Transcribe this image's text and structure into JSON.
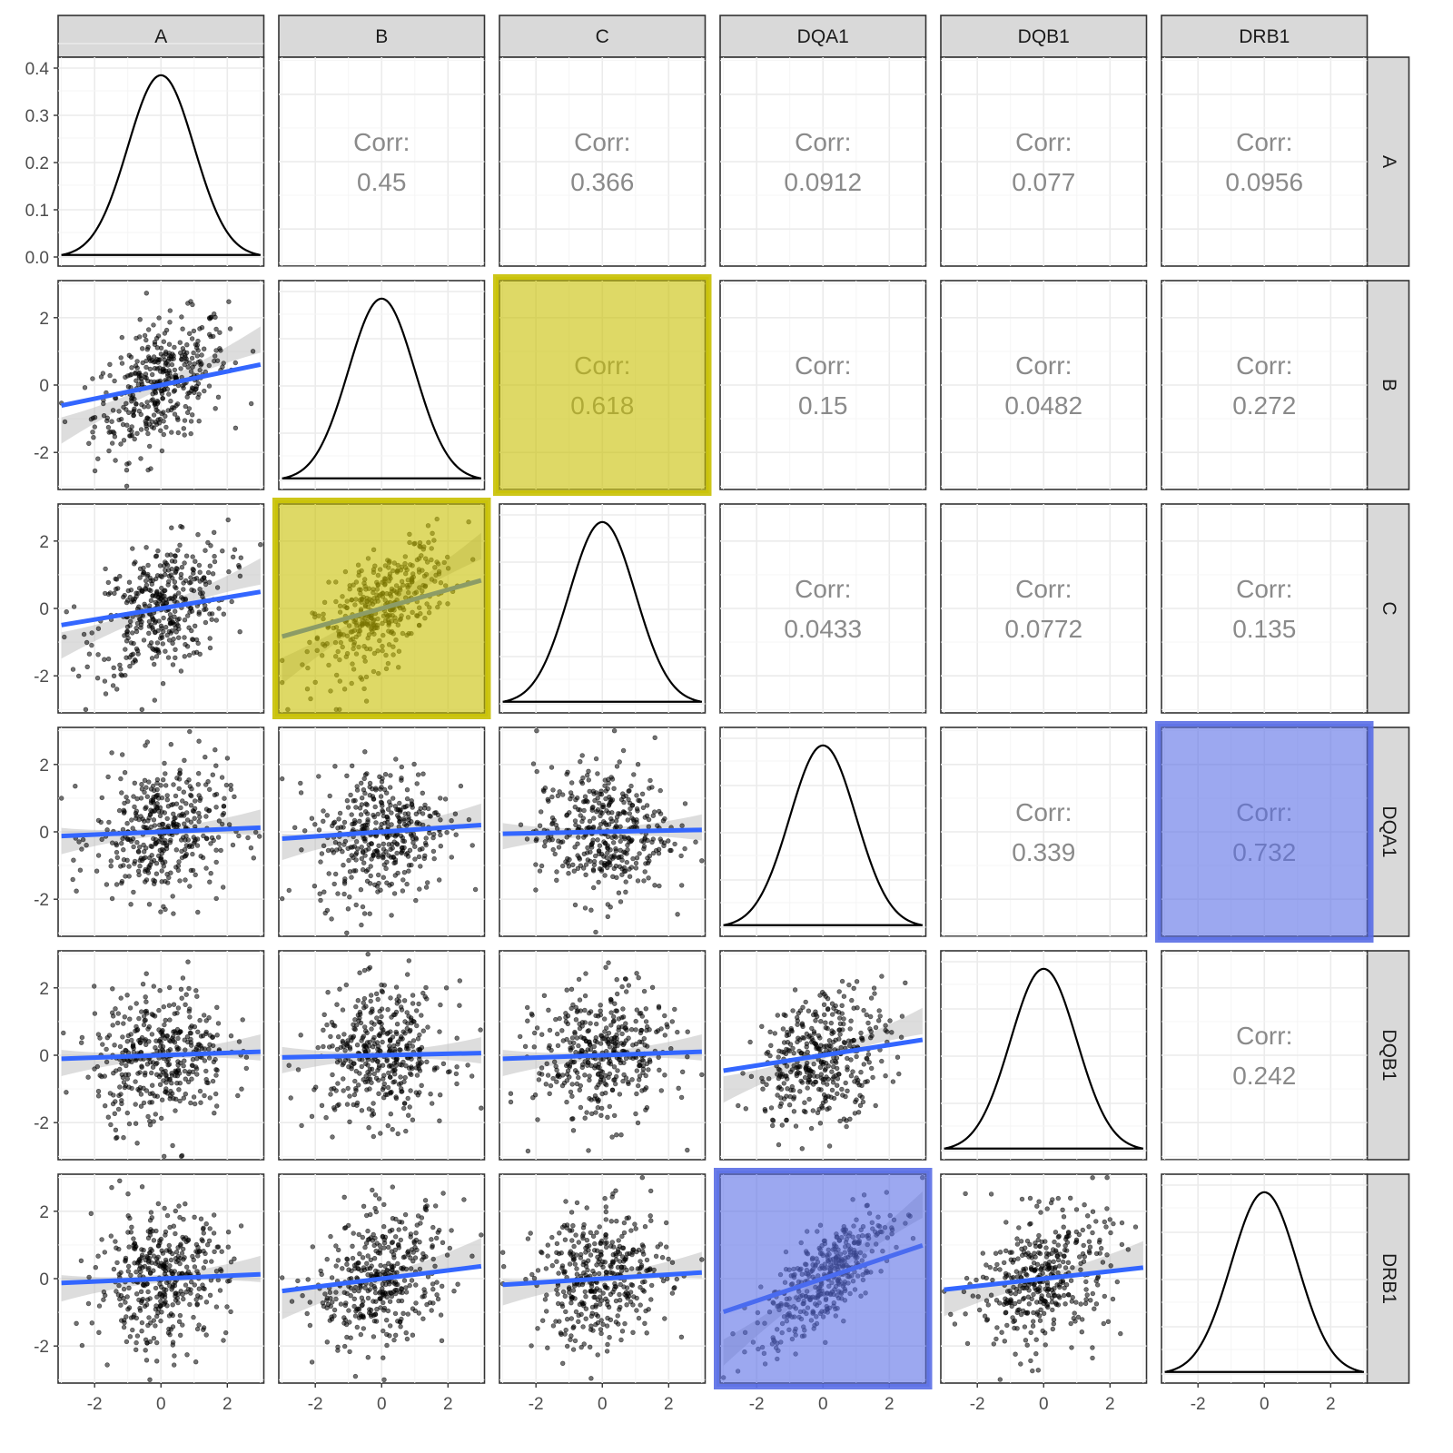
{
  "chart_data": {
    "type": "scatter",
    "title": "",
    "variables": [
      "A",
      "B",
      "C",
      "DQA1",
      "DQB1",
      "DRB1"
    ],
    "diag_density_ylim": [
      0,
      0.4
    ],
    "diag_density_yticks": [
      0.0,
      0.1,
      0.2,
      0.3,
      0.4
    ],
    "diag_density_ytick_labels": [
      "0.0",
      "0.1",
      "0.2",
      "0.3",
      "0.4"
    ],
    "density_peak": 0.385,
    "xlim": [
      -3.1,
      3.1
    ],
    "ylim": [
      -3.1,
      3.1
    ],
    "xticks": [
      -2,
      0,
      2
    ],
    "yticks": [
      -2,
      0,
      2
    ],
    "tick_labels": [
      "-2",
      "0",
      "2"
    ],
    "corr_label": "Corr:",
    "correlations": [
      {
        "row": "A",
        "col": "B",
        "value": "0.45"
      },
      {
        "row": "A",
        "col": "C",
        "value": "0.366"
      },
      {
        "row": "A",
        "col": "DQA1",
        "value": "0.0912"
      },
      {
        "row": "A",
        "col": "DQB1",
        "value": "0.077"
      },
      {
        "row": "A",
        "col": "DRB1",
        "value": "0.0956"
      },
      {
        "row": "B",
        "col": "C",
        "value": "0.618"
      },
      {
        "row": "B",
        "col": "DQA1",
        "value": "0.15"
      },
      {
        "row": "B",
        "col": "DQB1",
        "value": "0.0482"
      },
      {
        "row": "B",
        "col": "DRB1",
        "value": "0.272"
      },
      {
        "row": "C",
        "col": "DQA1",
        "value": "0.0433"
      },
      {
        "row": "C",
        "col": "DQB1",
        "value": "0.0772"
      },
      {
        "row": "C",
        "col": "DRB1",
        "value": "0.135"
      },
      {
        "row": "DQA1",
        "col": "DQB1",
        "value": "0.339"
      },
      {
        "row": "DQA1",
        "col": "DRB1",
        "value": "0.732"
      },
      {
        "row": "DQB1",
        "col": "DRB1",
        "value": "0.242"
      }
    ],
    "points_per_panel": 400,
    "smooth": "lm with confidence band",
    "highlights": [
      {
        "pair": [
          "B",
          "C"
        ],
        "color": "#c8c000",
        "fill_opacity": 0.6
      },
      {
        "pair": [
          "DQA1",
          "DRB1"
        ],
        "color": "#5a6ee6",
        "fill_opacity": 0.6
      }
    ],
    "colors": {
      "points": "#000000",
      "fit_line": "#3366ff",
      "ci_band": "#b3b3b3",
      "strip": "#d9d9d9"
    }
  }
}
